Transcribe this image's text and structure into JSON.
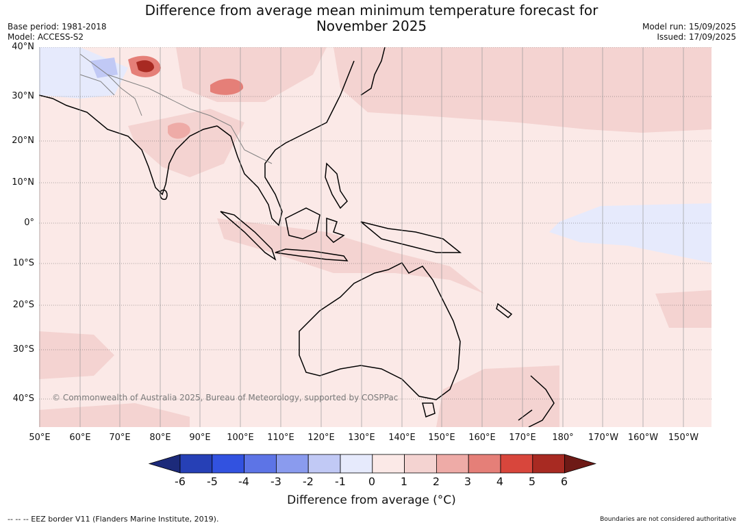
{
  "header": {
    "title_line1": "Difference from average mean minimum temperature forecast for",
    "title_line2": "November 2025",
    "base_period": "Base period: 1981-2018",
    "model": "Model: ACCESS-S2",
    "model_run": "Model run: 15/09/2025",
    "issued": "Issued: 17/09/2025"
  },
  "map": {
    "lat_labels": [
      "40°N",
      "30°N",
      "20°N",
      "10°N",
      "0°",
      "10°S",
      "20°S",
      "30°S",
      "40°S"
    ],
    "lon_labels": [
      "50°E",
      "60°E",
      "70°E",
      "80°E",
      "90°E",
      "100°E",
      "110°E",
      "120°E",
      "130°E",
      "140°E",
      "150°E",
      "160°E",
      "170°E",
      "180°",
      "170°W",
      "160°W",
      "150°W"
    ],
    "copyright": "© Commonwealth of Australia 2025, Bureau of Meteorology, supported by COSPPac",
    "colors": {
      "land_outline": "#000000",
      "border": "#808080",
      "grid": "#555555",
      "ocean_bg": "#fbe9e7"
    }
  },
  "colorbar": {
    "ticks": [
      "-6",
      "-5",
      "-4",
      "-3",
      "-2",
      "-1",
      "0",
      "1",
      "2",
      "3",
      "4",
      "5",
      "6"
    ],
    "colors": [
      "#1c2a7a",
      "#2640b6",
      "#3252e0",
      "#5d74e6",
      "#8a9bee",
      "#c1c9f5",
      "#e6eafc",
      "#fbe9e7",
      "#f4d3d1",
      "#eeaba7",
      "#e57f78",
      "#d8463c",
      "#a82a22",
      "#6e1a16"
    ],
    "label": "Difference from average (°C)"
  },
  "footer": {
    "eez": "--  --  -- EEZ border V11 (Flanders Marine Institute, 2019).",
    "boundaries": "Boundaries are not considered authoritative"
  }
}
